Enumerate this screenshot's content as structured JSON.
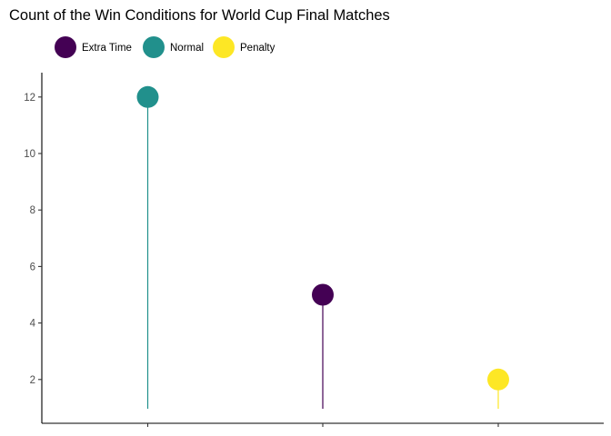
{
  "chart_data": {
    "type": "lollipop",
    "title": "Count of the Win Conditions for World Cup Final Matches",
    "xlabel": "",
    "ylabel": "",
    "legend_position": "top-left",
    "grid": false,
    "categories": [
      "Normal",
      "Extra Time",
      "Penalty"
    ],
    "values": [
      12,
      5,
      2
    ],
    "colors": [
      "#21908C",
      "#440154",
      "#FDE725"
    ],
    "ylim": [
      0,
      12.4
    ],
    "y_ticks": [
      2,
      4,
      6,
      8,
      10,
      12
    ],
    "x_tick_labels_visible": false,
    "legend": [
      {
        "label": "Extra Time",
        "color": "#440154"
      },
      {
        "label": "Normal",
        "color": "#21908C"
      },
      {
        "label": "Penalty",
        "color": "#FDE725"
      }
    ]
  }
}
